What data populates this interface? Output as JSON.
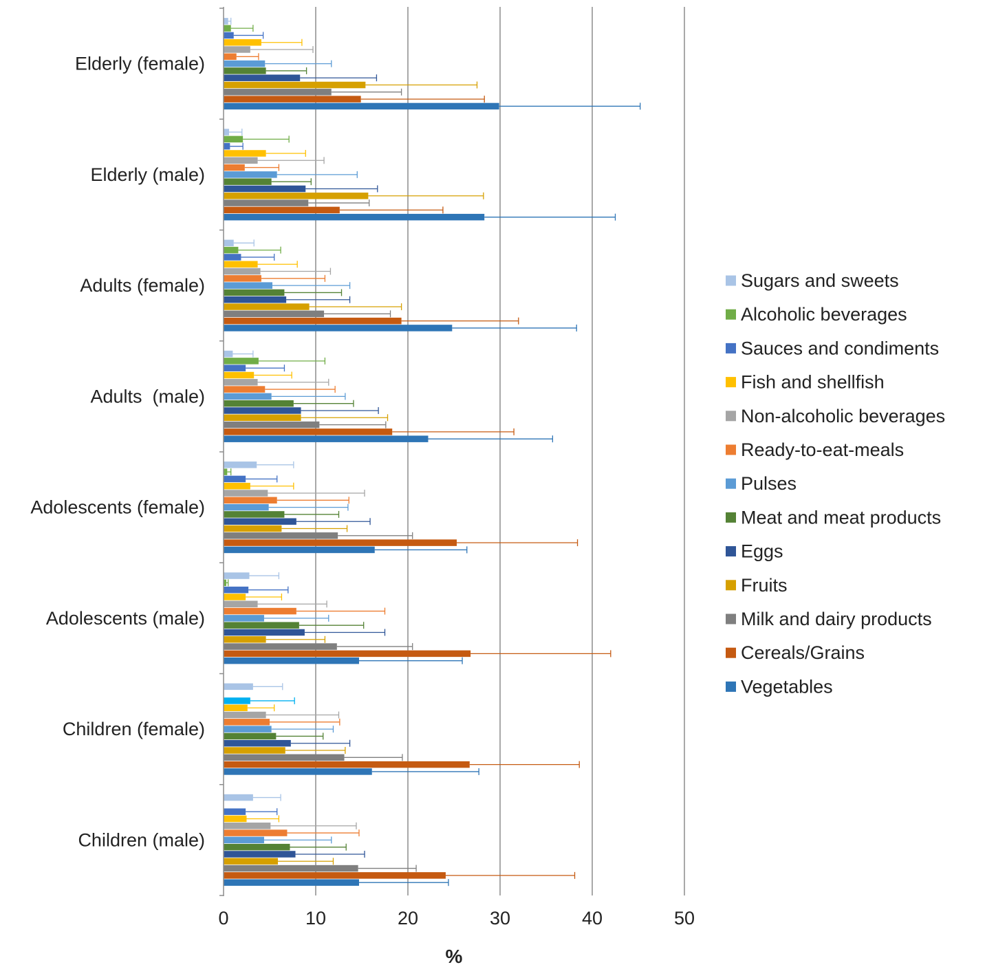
{
  "chart_data": {
    "type": "bar",
    "orientation": "horizontal",
    "xlabel": "%",
    "xlim": [
      0,
      50
    ],
    "xticks": [
      0,
      10,
      20,
      30,
      40,
      50
    ],
    "grid": "vertical",
    "legend_position": "right",
    "error_bars": true,
    "categories": [
      "Elderly (female)",
      "Elderly (male)",
      "Adults (female)",
      "Adults  (male)",
      "Adolescents (female)",
      "Adolescents (male)",
      "Children (female)",
      "Children (male)"
    ],
    "series": [
      {
        "name": "Sugars and sweets",
        "color": "#a9c4e6",
        "values": [
          0.5,
          0.6,
          1.1,
          1.0,
          3.6,
          2.8,
          3.2,
          3.2
        ],
        "errors": [
          0.3,
          1.4,
          2.2,
          2.2,
          4.0,
          3.2,
          3.2,
          3.0
        ]
      },
      {
        "name": "Alcoholic beverages",
        "color": "#70ad47",
        "values": [
          0.8,
          2.1,
          1.6,
          3.8,
          0.4,
          0.3,
          0.0,
          0.0
        ],
        "errors": [
          2.4,
          5.0,
          4.6,
          7.2,
          0.4,
          0.2,
          0.0,
          0.0
        ]
      },
      {
        "name": "Sauces and condiments",
        "color": "#4472c4",
        "values": [
          1.1,
          0.7,
          1.9,
          2.4,
          2.4,
          2.7,
          2.9,
          2.4
        ],
        "errors": [
          3.2,
          1.4,
          3.6,
          4.2,
          3.4,
          4.3,
          4.8,
          3.4
        ],
        "bar_colors": {
          "6": "#00b0f0"
        }
      },
      {
        "name": "Fish and shellfish",
        "color": "#ffc000",
        "values": [
          4.1,
          4.6,
          3.7,
          3.3,
          2.9,
          2.4,
          2.6,
          2.5
        ],
        "errors": [
          4.4,
          4.3,
          4.3,
          4.1,
          4.7,
          3.9,
          2.9,
          3.5
        ]
      },
      {
        "name": "Non-alcoholic beverages",
        "color": "#a5a5a5",
        "values": [
          2.9,
          3.7,
          4.0,
          3.7,
          4.8,
          3.7,
          4.6,
          5.1
        ],
        "errors": [
          6.8,
          7.2,
          7.6,
          7.7,
          10.5,
          7.5,
          7.9,
          9.3
        ]
      },
      {
        "name": "Ready-to-eat-meals",
        "color": "#ed7d31",
        "values": [
          1.4,
          2.3,
          4.1,
          4.5,
          5.8,
          7.9,
          5.0,
          6.9
        ],
        "errors": [
          2.4,
          3.7,
          6.9,
          7.6,
          7.8,
          9.6,
          7.6,
          7.8
        ]
      },
      {
        "name": "Pulses",
        "color": "#5b9bd5",
        "values": [
          4.5,
          5.8,
          5.3,
          5.2,
          4.9,
          4.4,
          5.2,
          4.4
        ],
        "errors": [
          7.2,
          8.7,
          8.4,
          8.0,
          8.6,
          7.0,
          6.7,
          7.3
        ]
      },
      {
        "name": "Meat and meat products",
        "color": "#548235",
        "values": [
          4.6,
          5.2,
          6.6,
          7.6,
          6.6,
          8.2,
          5.7,
          7.2
        ],
        "errors": [
          4.4,
          4.3,
          6.2,
          6.5,
          5.9,
          7.0,
          5.1,
          6.1
        ]
      },
      {
        "name": "Eggs",
        "color": "#2f5597",
        "values": [
          8.3,
          8.9,
          6.8,
          8.4,
          7.9,
          8.8,
          7.3,
          7.8
        ],
        "errors": [
          8.3,
          7.8,
          6.9,
          8.4,
          8.0,
          8.7,
          6.4,
          7.5
        ]
      },
      {
        "name": "Fruits",
        "color": "#d6a000",
        "values": [
          15.4,
          15.7,
          9.3,
          8.4,
          6.3,
          4.6,
          6.7,
          5.9
        ],
        "errors": [
          12.1,
          12.5,
          10.0,
          9.4,
          7.1,
          6.4,
          6.5,
          6.0
        ]
      },
      {
        "name": "Milk and dairy products",
        "color": "#7f7f7f",
        "values": [
          11.7,
          9.2,
          10.9,
          10.4,
          12.4,
          12.3,
          13.1,
          14.6
        ],
        "errors": [
          7.6,
          6.6,
          7.2,
          7.2,
          8.1,
          8.2,
          6.3,
          6.3
        ]
      },
      {
        "name": "Cereals/Grains",
        "color": "#c55a11",
        "values": [
          14.9,
          12.6,
          19.3,
          18.3,
          25.3,
          26.8,
          26.7,
          24.1
        ],
        "errors": [
          13.4,
          11.2,
          12.7,
          13.2,
          13.1,
          15.2,
          11.9,
          14.0
        ]
      },
      {
        "name": "Vegetables",
        "color": "#2e75b6",
        "values": [
          29.9,
          28.3,
          24.8,
          22.2,
          16.4,
          14.7,
          16.1,
          14.7
        ],
        "errors": [
          15.3,
          14.2,
          13.5,
          13.5,
          10.0,
          11.2,
          11.6,
          9.7
        ]
      }
    ]
  }
}
